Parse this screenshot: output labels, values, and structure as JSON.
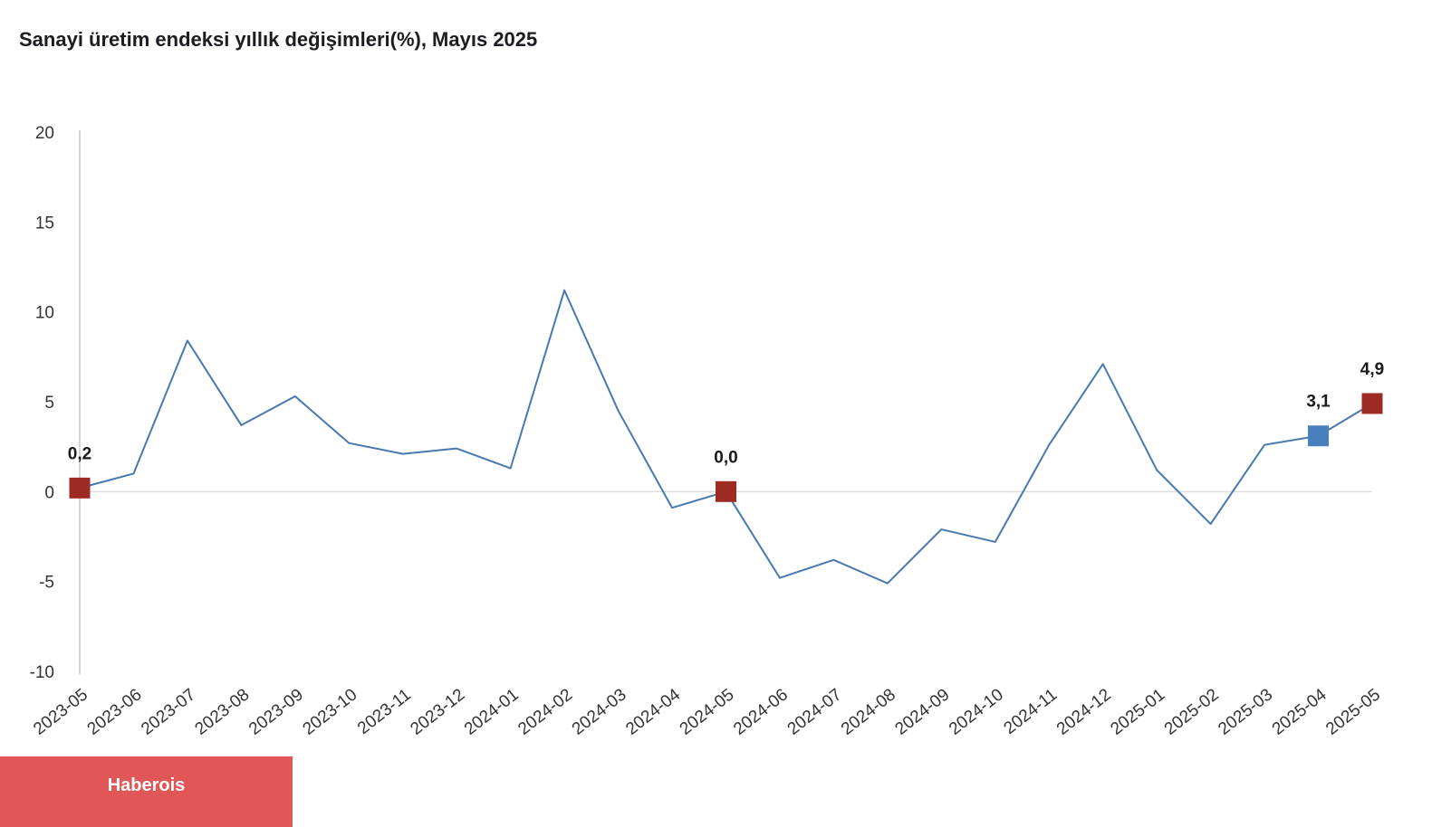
{
  "chart_data": {
    "type": "line",
    "title": "Sanayi üretim endeksi yıllık değişimleri(%), Mayıs 2025",
    "x": [
      "2023-05",
      "2023-06",
      "2023-07",
      "2023-08",
      "2023-09",
      "2023-10",
      "2023-11",
      "2023-12",
      "2024-01",
      "2024-02",
      "2024-03",
      "2024-04",
      "2024-05",
      "2024-06",
      "2024-07",
      "2024-08",
      "2024-09",
      "2024-10",
      "2024-11",
      "2024-12",
      "2025-01",
      "2025-02",
      "2025-03",
      "2025-04",
      "2025-05"
    ],
    "values": [
      0.2,
      1.0,
      8.4,
      3.7,
      5.3,
      2.7,
      2.1,
      2.4,
      1.3,
      11.2,
      4.5,
      -0.9,
      0.0,
      -4.8,
      -3.8,
      -5.1,
      -2.1,
      -2.8,
      2.6,
      7.1,
      1.2,
      -1.8,
      2.6,
      3.1,
      4.9
    ],
    "ylim": [
      -10,
      20
    ],
    "yticks": [
      20,
      15,
      10,
      5,
      0,
      -5,
      -10
    ],
    "grid": "zero-line-only",
    "legend": "none",
    "xlabel": "",
    "ylabel": "",
    "highlighted_points": [
      {
        "x": "2023-05",
        "index": 0,
        "label": "0,2",
        "marker_color": "#9e2b23"
      },
      {
        "x": "2024-05",
        "index": 12,
        "label": "0,0",
        "marker_color": "#9e2b23"
      },
      {
        "x": "2025-04",
        "index": 23,
        "label": "3,1",
        "marker_color": "#4a7fbe"
      },
      {
        "x": "2025-05",
        "index": 24,
        "label": "4,9",
        "marker_color": "#9e2b23"
      }
    ],
    "colors": {
      "line": "#4878b0",
      "axis_text": "#333333",
      "zero_line": "#dedede",
      "axis_line": "#cccccc",
      "data_label_text": "#1a1a1a"
    }
  },
  "branding": {
    "label": "Haberois",
    "background": "#e15757",
    "text_color": "#ffffff"
  }
}
